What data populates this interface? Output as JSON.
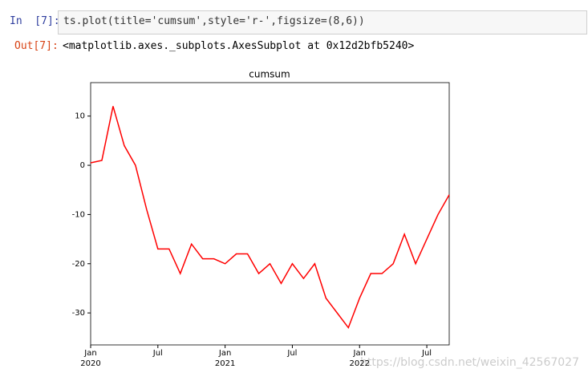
{
  "cell": {
    "in_prompt": "In  [7]:",
    "code": "ts.plot(title='cumsum',style='r-',figsize=(8,6))",
    "out_prompt": "Out[7]:",
    "output": "<matplotlib.axes._subplots.AxesSubplot at 0x12d2bfb5240>"
  },
  "chart_data": {
    "type": "line",
    "title": "cumsum",
    "x": [
      "2020-01",
      "2020-02",
      "2020-03",
      "2020-04",
      "2020-05",
      "2020-06",
      "2020-07",
      "2020-08",
      "2020-09",
      "2020-10",
      "2020-11",
      "2020-12",
      "2021-01",
      "2021-02",
      "2021-03",
      "2021-04",
      "2021-05",
      "2021-06",
      "2021-07",
      "2021-08",
      "2021-09",
      "2021-10",
      "2021-11",
      "2021-12",
      "2022-01",
      "2022-02",
      "2022-03",
      "2022-04",
      "2022-05",
      "2022-06",
      "2022-07",
      "2022-08",
      "2022-09"
    ],
    "series": [
      {
        "name": "cumsum",
        "color": "#ff0000",
        "values": [
          0.5,
          1,
          12,
          4,
          0,
          -9,
          -17,
          -17,
          -22,
          -16,
          -19,
          -19,
          -20,
          -18,
          -18,
          -22,
          -20,
          -24,
          -20,
          -23,
          -20,
          -27,
          -30,
          -33,
          -27,
          -22,
          -22,
          -20,
          -14,
          -20,
          -15,
          -10,
          -6
        ]
      }
    ],
    "xlim": [
      "2020-01",
      "2022-09"
    ],
    "xticks": [
      {
        "value": "2020-01",
        "label": "Jan"
      },
      {
        "value": "2020-07",
        "label": "Jul"
      },
      {
        "value": "2021-01",
        "label": "Jan"
      },
      {
        "value": "2021-07",
        "label": "Jul"
      },
      {
        "value": "2022-01",
        "label": "Jan"
      },
      {
        "value": "2022-07",
        "label": "Jul"
      }
    ],
    "xtick_years": [
      {
        "value": "2020-01",
        "label": "2020"
      },
      {
        "value": "2021-01",
        "label": "2021"
      },
      {
        "value": "2022-01",
        "label": "2022"
      }
    ],
    "ylim": [
      -36.5,
      16.8
    ],
    "yticks": [
      -30,
      -20,
      -10,
      0,
      10
    ]
  },
  "watermark": "https://blog.csdn.net/weixin_42567027"
}
